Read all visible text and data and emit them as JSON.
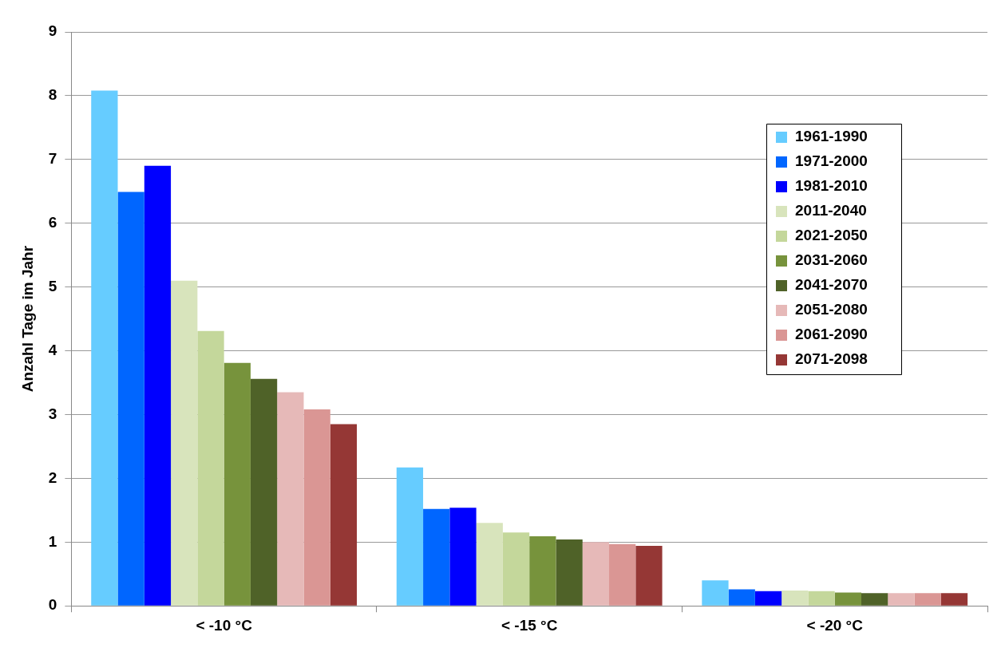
{
  "chart_data": {
    "type": "bar",
    "ylabel": "Anzahl Tage im Jahr",
    "categories": [
      "< -10 °C",
      "< -15 °C",
      "< -20 °C"
    ],
    "series": [
      {
        "name": "1961-1990",
        "color": "#66ccff",
        "values": [
          8.08,
          2.17,
          0.4
        ]
      },
      {
        "name": "1971-2000",
        "color": "#0066ff",
        "values": [
          6.49,
          1.52,
          0.26
        ]
      },
      {
        "name": "1981-2010",
        "color": "#0000ff",
        "values": [
          6.9,
          1.54,
          0.23
        ]
      },
      {
        "name": "2011-2040",
        "color": "#d8e4bc",
        "values": [
          5.1,
          1.3,
          0.24
        ]
      },
      {
        "name": "2021-2050",
        "color": "#c4d79b",
        "values": [
          4.31,
          1.15,
          0.23
        ]
      },
      {
        "name": "2031-2060",
        "color": "#77933c",
        "values": [
          3.81,
          1.09,
          0.21
        ]
      },
      {
        "name": "2041-2070",
        "color": "#4f6228",
        "values": [
          3.56,
          1.04,
          0.2
        ]
      },
      {
        "name": "2051-2080",
        "color": "#e6b9b8",
        "values": [
          3.35,
          1.0,
          0.2
        ]
      },
      {
        "name": "2061-2090",
        "color": "#da9694",
        "values": [
          3.08,
          0.97,
          0.2
        ]
      },
      {
        "name": "2071-2098",
        "color": "#953735",
        "values": [
          2.85,
          0.94,
          0.2
        ]
      }
    ],
    "ylim": [
      0,
      9
    ],
    "yticks": [
      0,
      1,
      2,
      3,
      4,
      5,
      6,
      7,
      8,
      9
    ],
    "grid": "y",
    "legend": "right"
  }
}
